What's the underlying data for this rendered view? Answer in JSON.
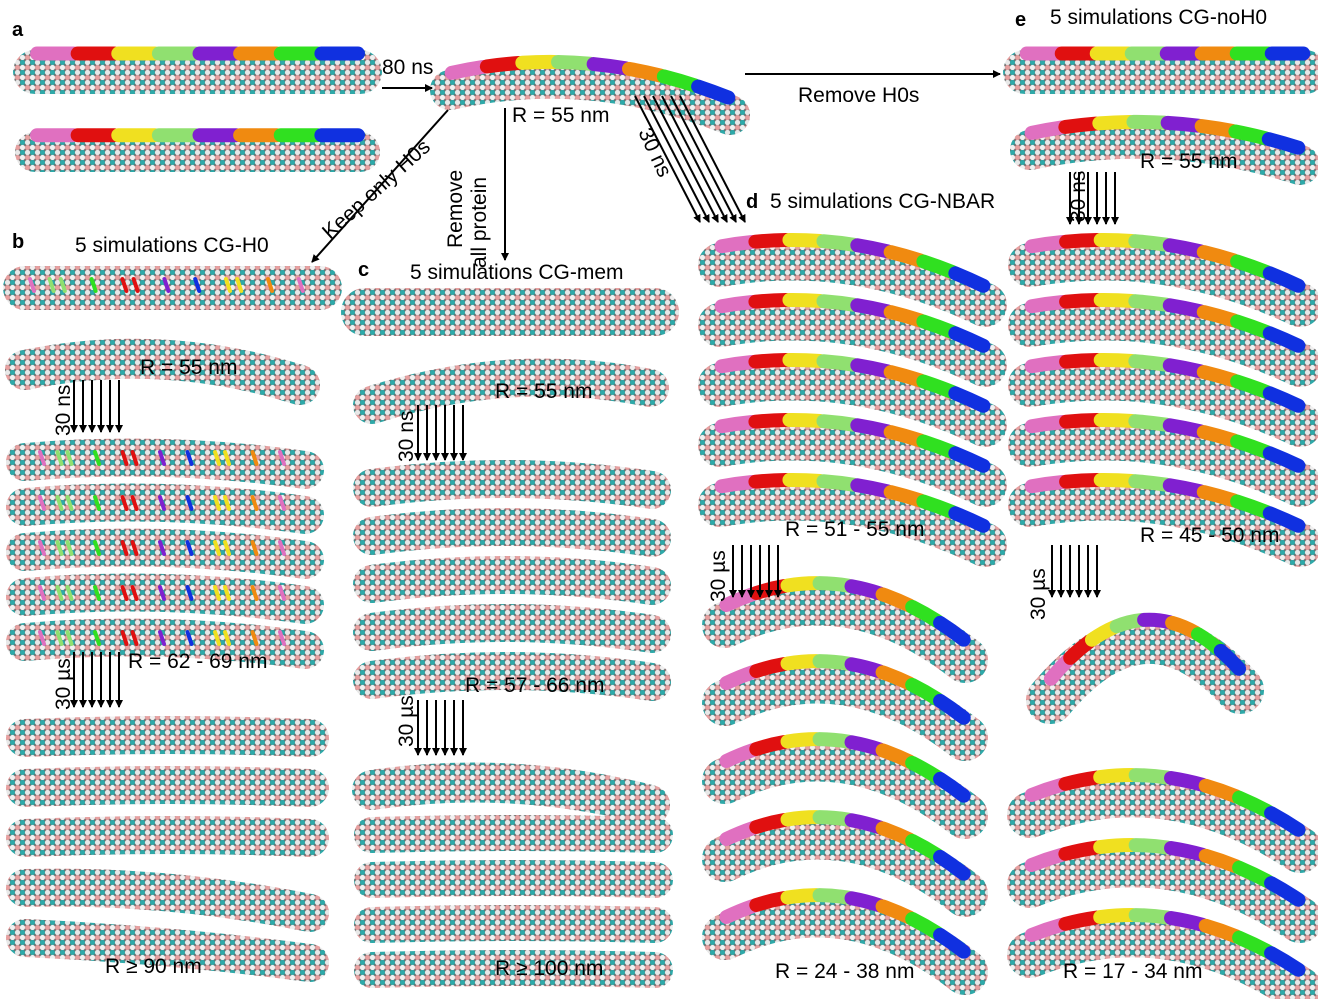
{
  "panel_a": {
    "label": "a",
    "arrow_label": "80 ns",
    "radius": "R = 55 nm"
  },
  "transitions": {
    "remove_h0s": "Remove H0s",
    "keep_only_h0s": "Keep only H0s",
    "remove_protein": [
      "Remove",
      "all protein"
    ],
    "nbar_time": "30 ns"
  },
  "panel_b": {
    "label": "b",
    "title": "5 simulations CG-H0",
    "radius_start": "R = 55 nm",
    "time_1": "30 ns",
    "radius_mid": "R = 62 - 69 nm",
    "time_2": "30 µs",
    "radius_end": "R ≥ 90 nm"
  },
  "panel_c": {
    "label": "c",
    "title": "5 simulations CG-mem",
    "radius_start": "R = 55 nm",
    "time_1": "30 ns",
    "radius_mid": "R = 57 - 66 nm",
    "time_2": "30 µs",
    "radius_end": "R ≥ 100 nm"
  },
  "panel_d": {
    "label": "d",
    "title": "5 simulations CG-NBAR",
    "radius_mid": "R = 51 - 55 nm",
    "time_2": "30 µs",
    "radius_end": "R = 24 - 38 nm"
  },
  "panel_e": {
    "label": "e",
    "title": "5 simulations CG-noH0",
    "radius_start": "R = 55 nm",
    "time_1": "30 ns",
    "radius_mid": "R = 45 - 50 nm",
    "time_2": "30 µs",
    "radius_end": "R = 17 - 34 nm"
  }
}
